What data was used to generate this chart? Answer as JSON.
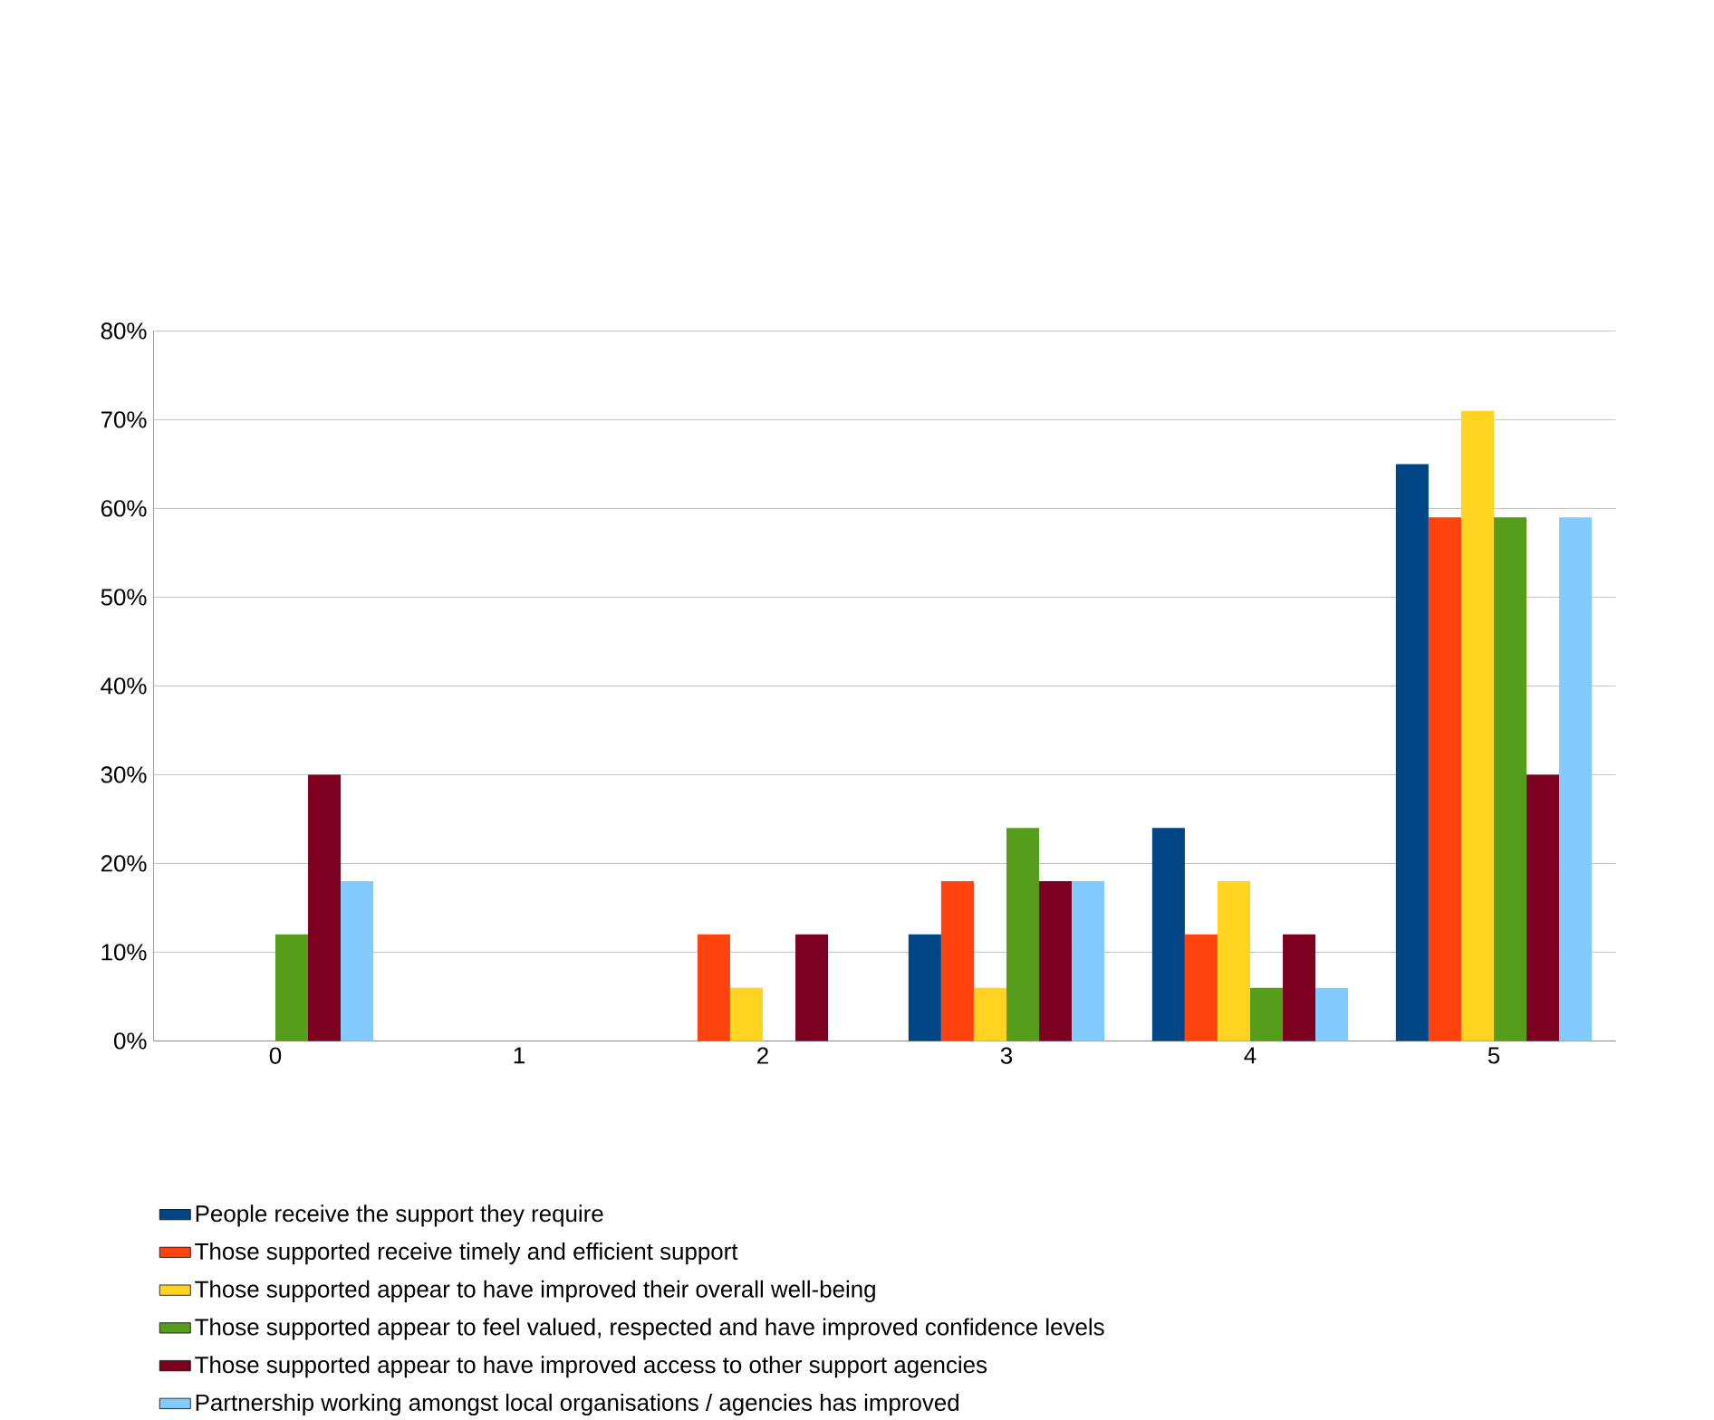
{
  "chart_data": {
    "type": "bar",
    "categories": [
      "0",
      "1",
      "2",
      "3",
      "4",
      "5"
    ],
    "series": [
      {
        "name": "People receive the support they require",
        "color": "#004586",
        "values": [
          0,
          0,
          0,
          12,
          24,
          65
        ]
      },
      {
        "name": "Those supported receive timely and efficient support",
        "color": "#ff420e",
        "values": [
          0,
          0,
          12,
          18,
          12,
          59
        ]
      },
      {
        "name": "Those supported appear to have improved their overall well-being",
        "color": "#ffd320",
        "values": [
          0,
          0,
          6,
          6,
          18,
          71
        ]
      },
      {
        "name": "Those supported appear to feel valued, respected and have improved confidence levels",
        "color": "#579d1c",
        "values": [
          12,
          0,
          0,
          24,
          6,
          59
        ]
      },
      {
        "name": "Those supported appear to have improved access to other support agencies",
        "color": "#7e0021",
        "values": [
          30,
          0,
          12,
          18,
          12,
          30
        ]
      },
      {
        "name": "Partnership working amongst local organisations / agencies has improved",
        "color": "#83caff",
        "values": [
          18,
          0,
          0,
          18,
          6,
          59
        ]
      }
    ],
    "ylim": [
      0,
      80
    ],
    "yticks": [
      {
        "value": 0,
        "label": "0%"
      },
      {
        "value": 10,
        "label": "10%"
      },
      {
        "value": 20,
        "label": "20%"
      },
      {
        "value": 30,
        "label": "30%"
      },
      {
        "value": 40,
        "label": "40%"
      },
      {
        "value": 50,
        "label": "50%"
      },
      {
        "value": 60,
        "label": "60%"
      },
      {
        "value": 70,
        "label": "70%"
      },
      {
        "value": 80,
        "label": "80%"
      }
    ],
    "grid": "y",
    "legend": "bottom"
  }
}
